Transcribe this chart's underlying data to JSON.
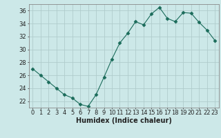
{
  "x": [
    0,
    1,
    2,
    3,
    4,
    5,
    6,
    7,
    8,
    9,
    10,
    11,
    12,
    13,
    14,
    15,
    16,
    17,
    18,
    19,
    20,
    21,
    22,
    23
  ],
  "y": [
    27,
    26,
    25,
    24,
    23,
    22.5,
    21.5,
    21.2,
    23,
    25.7,
    28.5,
    31,
    32.5,
    34.3,
    33.8,
    35.5,
    36.5,
    34.8,
    34.3,
    35.7,
    35.6,
    34.2,
    33,
    31.4
  ],
  "line_color": "#1a6b5a",
  "marker": "D",
  "marker_size": 2.5,
  "bg_color": "#cce8e8",
  "grid_color": "#b0cccc",
  "xlabel": "Humidex (Indice chaleur)",
  "ylim": [
    21,
    37
  ],
  "yticks": [
    22,
    24,
    26,
    28,
    30,
    32,
    34,
    36
  ],
  "xlim": [
    -0.5,
    23.5
  ],
  "xticks": [
    0,
    1,
    2,
    3,
    4,
    5,
    6,
    7,
    8,
    9,
    10,
    11,
    12,
    13,
    14,
    15,
    16,
    17,
    18,
    19,
    20,
    21,
    22,
    23
  ],
  "label_fontsize": 7,
  "tick_fontsize": 6
}
